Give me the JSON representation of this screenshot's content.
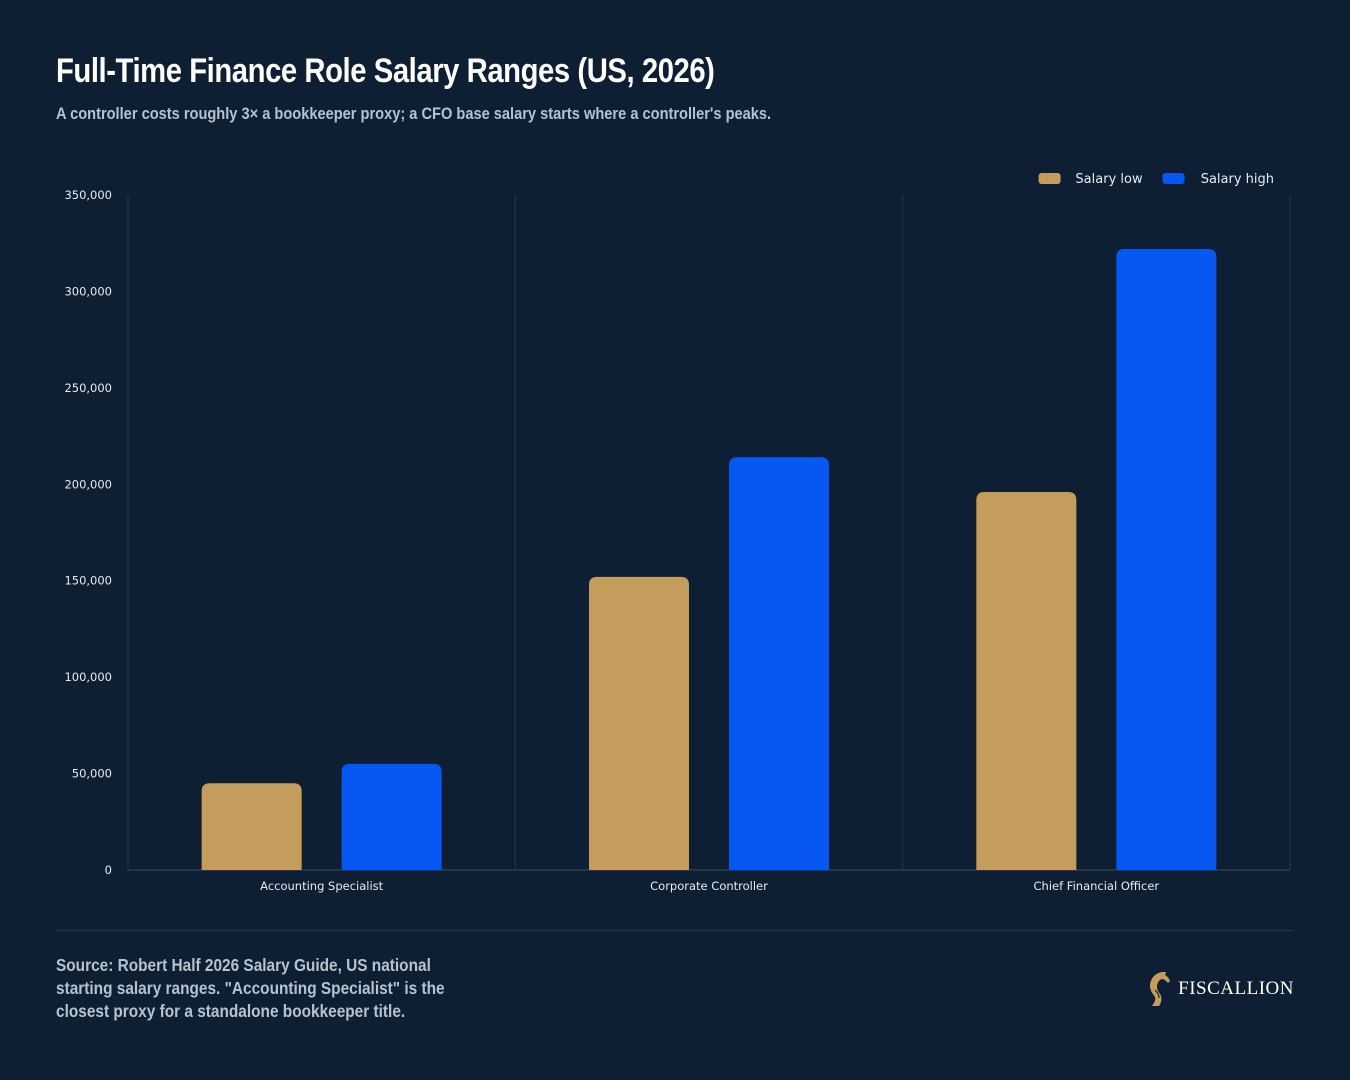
{
  "header": {
    "title": "Full-Time Finance Role Salary Ranges (US, 2026)",
    "subtitle": "A controller costs roughly 3× a bookkeeper proxy; a CFO base salary starts where a controller's peaks."
  },
  "footer": {
    "source": "Source: Robert Half 2026 Salary Guide, US national starting salary ranges. \"Accounting Specialist\" is the closest proxy for a standalone bookkeeper title.",
    "logo_text": "FISCALLION",
    "logo_icon": "horse-head-icon"
  },
  "colors": {
    "background": "#0e1f33",
    "salary_low": "#c49d5c",
    "salary_high": "#0758f2",
    "gridline": "#25384c",
    "axis_text": "#e6ebf0"
  },
  "chart_data": {
    "type": "bar",
    "categories": [
      "Accounting Specialist",
      "Corporate Controller",
      "Chief Financial Officer"
    ],
    "series": [
      {
        "name": "Salary low",
        "values": [
          45000,
          152000,
          196000
        ]
      },
      {
        "name": "Salary high",
        "values": [
          55000,
          214000,
          322000
        ]
      }
    ],
    "ylim": [
      0,
      350000
    ],
    "yticks": [
      0,
      50000,
      100000,
      150000,
      200000,
      250000,
      300000,
      350000
    ],
    "ytick_labels": [
      "0",
      "50,000",
      "100,000",
      "150,000",
      "200,000",
      "250,000",
      "300,000",
      "350,000"
    ],
    "xlabel": "",
    "ylabel": "",
    "grid": "vertical category separators",
    "legend_position": "top-right"
  }
}
